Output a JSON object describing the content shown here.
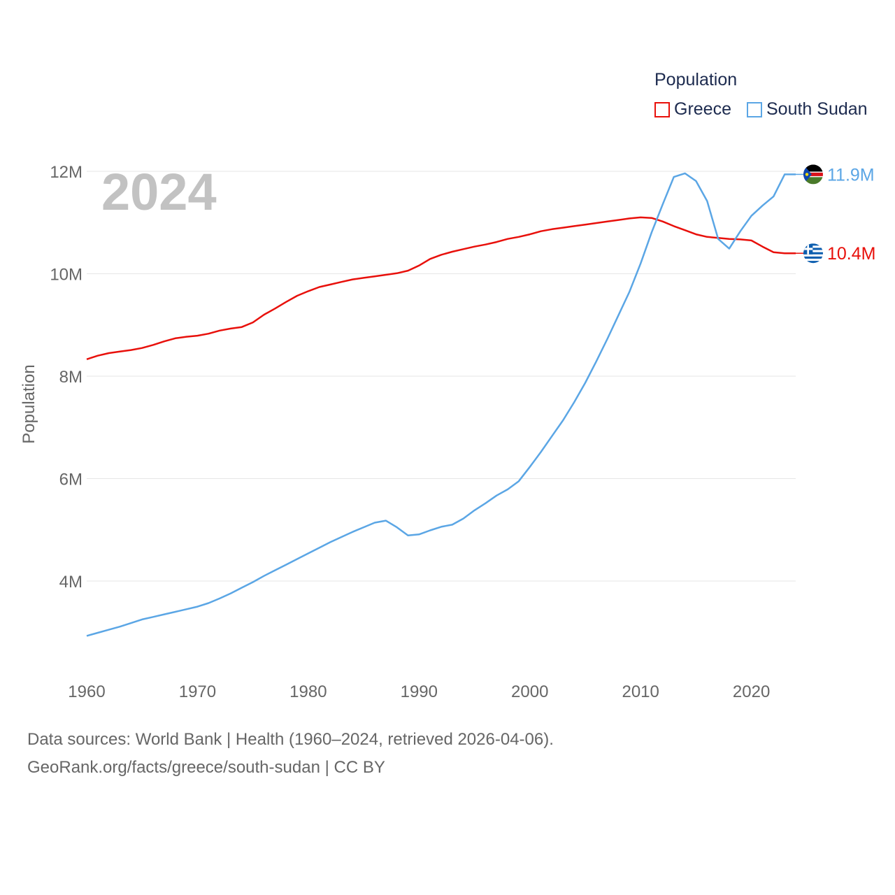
{
  "legend": {
    "title": "Population"
  },
  "source": {
    "line1": "Data sources: World Bank | Health (1960–2024, retrieved 2026-04-06).",
    "line2": "GeoRank.org/facts/greece/south-sudan | CC BY"
  },
  "chart_data": {
    "type": "line",
    "title": "",
    "year_label": "2024",
    "xlabel": "",
    "ylabel": "Population",
    "xlim": [
      1960,
      2025
    ],
    "ylim": [
      2500000,
      12500000
    ],
    "x_ticks": [
      1960,
      1970,
      1980,
      1990,
      2000,
      2010,
      2020
    ],
    "x_tick_labels": [
      "1960",
      "1970",
      "1980",
      "1990",
      "2000",
      "2010",
      "2020"
    ],
    "y_ticks": [
      4000000,
      6000000,
      8000000,
      10000000,
      12000000
    ],
    "y_tick_labels": [
      "4M",
      "6M",
      "8M",
      "10M",
      "12M"
    ],
    "x": [
      1960,
      1961,
      1962,
      1963,
      1964,
      1965,
      1966,
      1967,
      1968,
      1969,
      1970,
      1971,
      1972,
      1973,
      1974,
      1975,
      1976,
      1977,
      1978,
      1979,
      1980,
      1981,
      1982,
      1983,
      1984,
      1985,
      1986,
      1987,
      1988,
      1989,
      1990,
      1991,
      1992,
      1993,
      1994,
      1995,
      1996,
      1997,
      1998,
      1999,
      2000,
      2001,
      2002,
      2003,
      2004,
      2005,
      2006,
      2007,
      2008,
      2009,
      2010,
      2011,
      2012,
      2013,
      2014,
      2015,
      2016,
      2017,
      2018,
      2019,
      2020,
      2021,
      2022,
      2023,
      2024
    ],
    "series": [
      {
        "name": "Greece",
        "color": "#e8100b",
        "end_label": "10.4M",
        "flag": "greece",
        "values": [
          8330000,
          8400000,
          8450000,
          8480000,
          8510000,
          8550000,
          8610000,
          8680000,
          8740000,
          8770000,
          8790000,
          8830000,
          8890000,
          8930000,
          8960000,
          9050000,
          9200000,
          9320000,
          9450000,
          9570000,
          9660000,
          9740000,
          9790000,
          9840000,
          9890000,
          9920000,
          9950000,
          9980000,
          10010000,
          10060000,
          10160000,
          10290000,
          10370000,
          10430000,
          10480000,
          10530000,
          10570000,
          10620000,
          10680000,
          10720000,
          10770000,
          10830000,
          10870000,
          10900000,
          10930000,
          10960000,
          10990000,
          11020000,
          11050000,
          11080000,
          11100000,
          11090000,
          11020000,
          10930000,
          10850000,
          10770000,
          10720000,
          10700000,
          10680000,
          10670000,
          10650000,
          10530000,
          10420000,
          10400000,
          10400000
        ]
      },
      {
        "name": "South Sudan",
        "color": "#5ba6e5",
        "end_label": "11.9M",
        "flag": "south-sudan",
        "values": [
          2930000,
          2990000,
          3050000,
          3110000,
          3180000,
          3250000,
          3300000,
          3350000,
          3400000,
          3450000,
          3500000,
          3570000,
          3660000,
          3760000,
          3870000,
          3980000,
          4100000,
          4210000,
          4320000,
          4430000,
          4540000,
          4650000,
          4760000,
          4860000,
          4960000,
          5050000,
          5140000,
          5180000,
          5050000,
          4890000,
          4910000,
          4990000,
          5060000,
          5100000,
          5220000,
          5380000,
          5520000,
          5670000,
          5790000,
          5950000,
          6230000,
          6520000,
          6830000,
          7140000,
          7490000,
          7870000,
          8290000,
          8730000,
          9190000,
          9650000,
          10200000,
          10810000,
          11360000,
          11890000,
          11960000,
          11810000,
          11420000,
          10680000,
          10490000,
          10830000,
          11130000,
          11330000,
          11510000,
          11940000,
          11940000
        ]
      }
    ],
    "legend_position": "top-right"
  },
  "colors": {
    "grid": "#e6e6e6",
    "tick": "#666666",
    "year": "#c2c2c2"
  }
}
